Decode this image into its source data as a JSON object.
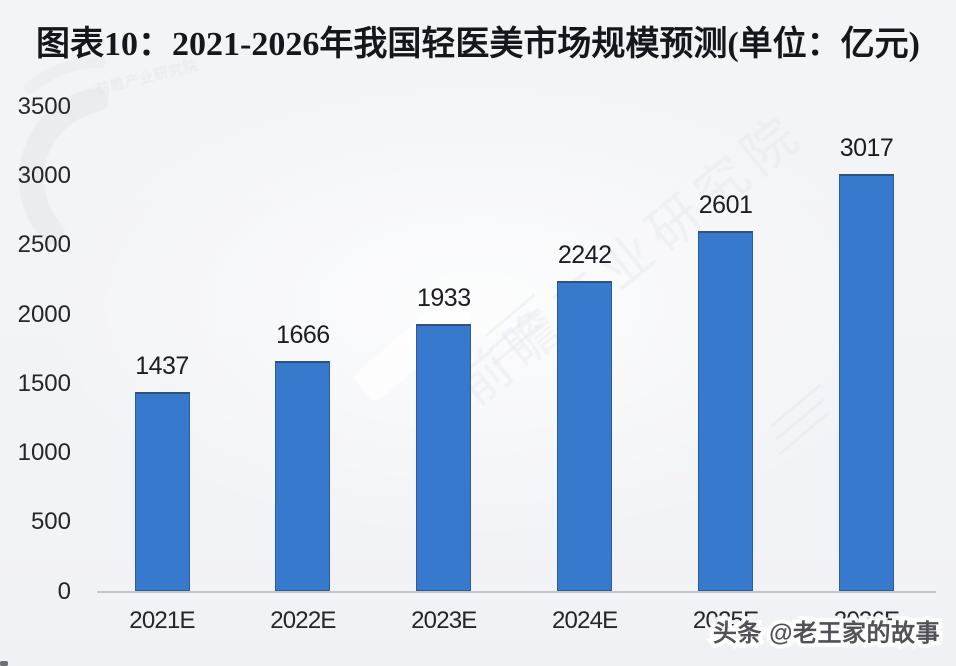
{
  "chart_data": {
    "type": "bar",
    "title": "图表10：2021-2026年我国轻医美市场规模预测(单位：亿元)",
    "categories": [
      "2021E",
      "2022E",
      "2023E",
      "2024E",
      "2025E",
      "2026E"
    ],
    "values": [
      1437,
      1666,
      1933,
      2242,
      2601,
      3017
    ],
    "value_labels": true,
    "yticks": [
      0,
      500,
      1000,
      1500,
      2000,
      2500,
      3000,
      3500
    ],
    "ylim": [
      0,
      3500
    ],
    "grid": false,
    "legend": false,
    "bar_color": "#3679cd",
    "bar_border_color": "#2b5d98",
    "bar_top_border_color": "#31517a"
  },
  "watermarks": {
    "bottom_right": "头条 @老王家的故事",
    "background_text": "前瞻产业研究院"
  },
  "colors": {
    "background": "#f2f3f6",
    "title_text": "#16161d",
    "tick_label": "#25252c",
    "value_label": "#1c1c23",
    "axis_line": "#c5c6ca",
    "watermark_ink": "#3e3e45"
  }
}
